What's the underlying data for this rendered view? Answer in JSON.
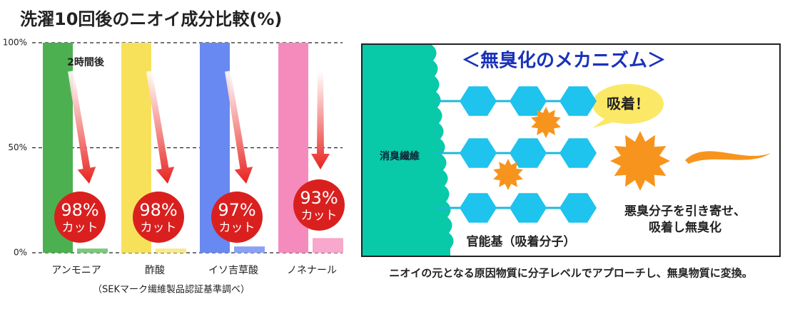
{
  "chart_data": {
    "type": "bar",
    "title": "洗濯10回後のニオイ成分比較(%)",
    "categories": [
      "アンモニア",
      "酢酸",
      "イソ吉草酸",
      "ノネナール"
    ],
    "series": [
      {
        "colors": [
          "#4cb050",
          "#f8e15a",
          "#6888f2",
          "#f58bbd"
        ],
        "values": [
          100,
          100,
          100,
          100
        ]
      },
      {
        "name": "2時間後",
        "colors": [
          "#7cc97e",
          "#f9e98a",
          "#8aa2f4",
          "#f7a8cc"
        ],
        "values": [
          2,
          2,
          3,
          7
        ]
      }
    ],
    "callouts": [
      {
        "value": 98,
        "label": "98%"
      },
      {
        "value": 98,
        "label": "98%"
      },
      {
        "value": 97,
        "label": "97%"
      },
      {
        "value": 93,
        "label": "93%"
      }
    ],
    "callout_text": "カット",
    "ylim": [
      0,
      100
    ],
    "yticks": [
      {
        "value": 0,
        "label": "0%"
      },
      {
        "value": 50,
        "label": "50%"
      },
      {
        "value": 100,
        "label": "100%"
      }
    ],
    "grid": true,
    "note": "（SEKマーク繊維製品認証基準調べ）"
  },
  "diagram": {
    "title": "＜無臭化のメカニズム＞",
    "fiber": "消臭繊維",
    "bubble": "吸着！",
    "functional_group": "官能基（吸着分子）",
    "result": [
      "悪臭分子を引き寄せ、",
      "吸着し無臭化"
    ],
    "caption": "ニオイの元となる原因物質に分子レベルでアプローチし、無臭物質に変換。"
  }
}
